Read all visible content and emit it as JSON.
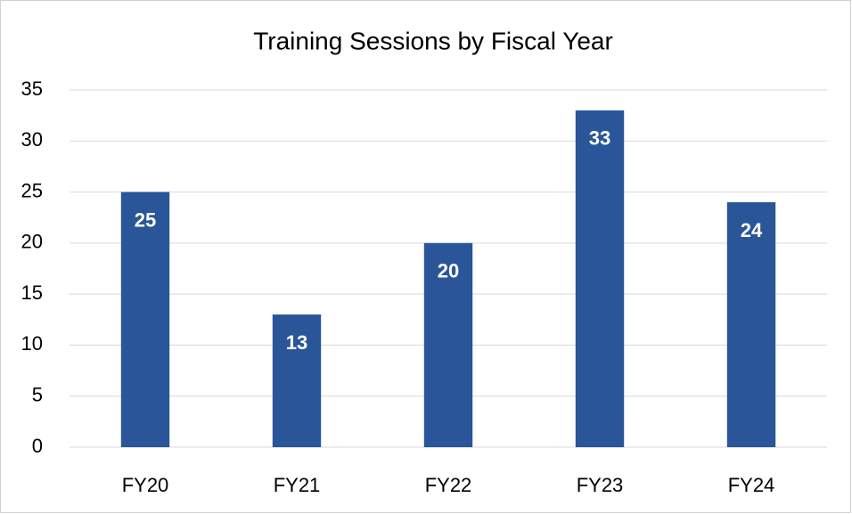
{
  "chart_data": {
    "type": "bar",
    "title": "Training Sessions by Fiscal Year",
    "categories": [
      "FY20",
      "FY21",
      "FY22",
      "FY23",
      "FY24"
    ],
    "values": [
      25,
      13,
      20,
      33,
      24
    ],
    "color": "#2a5699",
    "ylim": [
      0,
      35
    ],
    "yticks": [
      0,
      5,
      10,
      15,
      20,
      25,
      30,
      35
    ],
    "grid": true
  }
}
